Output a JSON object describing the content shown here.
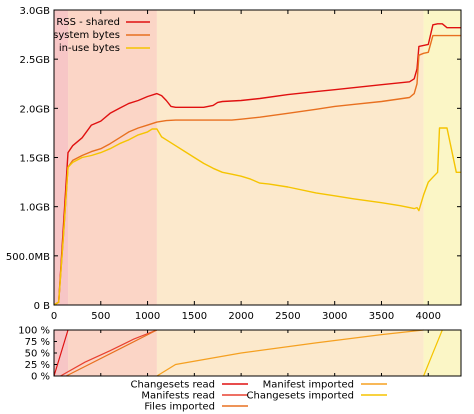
{
  "chart_data": [
    {
      "type": "line",
      "title": "",
      "xlabel": "",
      "ylabel": "",
      "xlim": [
        0,
        4350
      ],
      "ylim": [
        0,
        3000
      ],
      "x_ticks": [
        0,
        500,
        1000,
        1500,
        2000,
        2500,
        3000,
        3500,
        4000
      ],
      "x_tick_labels": [
        "0",
        "500",
        "1000",
        "1500",
        "2000",
        "2500",
        "3000",
        "3500",
        "4000"
      ],
      "y_ticks": [
        0,
        500,
        1000,
        1500,
        2000,
        2500,
        3000
      ],
      "y_tick_labels": [
        "0 B",
        "500.0MB",
        "1.0GB",
        "1.5GB",
        "2.0GB",
        "2.5GB",
        "3.0GB"
      ],
      "legend_position": "top-left",
      "background_phases": [
        {
          "x": [
            0,
            150
          ],
          "color": "#f7c6c6"
        },
        {
          "x": [
            150,
            1100
          ],
          "color": "#fbd5c6"
        },
        {
          "x": [
            1100,
            3950
          ],
          "color": "#fce9cc"
        },
        {
          "x": [
            3950,
            4350
          ],
          "color": "#fbf6c6"
        }
      ],
      "series": [
        {
          "name": "RSS - shared",
          "color": "#e01010",
          "x": [
            0,
            50,
            100,
            150,
            200,
            300,
            400,
            500,
            600,
            700,
            800,
            900,
            1000,
            1100,
            1150,
            1200,
            1250,
            1300,
            1400,
            1500,
            1600,
            1700,
            1750,
            1800,
            2000,
            2200,
            2500,
            2800,
            3000,
            3200,
            3500,
            3800,
            3850,
            3880,
            3900,
            3950,
            4000,
            4050,
            4100,
            4150,
            4200,
            4300,
            4350
          ],
          "values": [
            0,
            30,
            800,
            1550,
            1620,
            1700,
            1830,
            1870,
            1950,
            2000,
            2050,
            2080,
            2120,
            2150,
            2130,
            2080,
            2020,
            2010,
            2010,
            2010,
            2010,
            2030,
            2060,
            2070,
            2080,
            2100,
            2140,
            2170,
            2190,
            2210,
            2240,
            2270,
            2300,
            2400,
            2630,
            2640,
            2650,
            2850,
            2860,
            2860,
            2820,
            2820,
            2820
          ]
        },
        {
          "name": "system bytes",
          "color": "#e87020",
          "x": [
            0,
            50,
            100,
            150,
            200,
            300,
            400,
            500,
            600,
            700,
            800,
            900,
            1000,
            1100,
            1200,
            1300,
            1500,
            1700,
            1800,
            1900,
            2000,
            2200,
            2500,
            2800,
            3000,
            3200,
            3500,
            3800,
            3850,
            3880,
            3900,
            3950,
            4000,
            4050,
            4100,
            4150,
            4200,
            4350
          ],
          "values": [
            0,
            30,
            700,
            1400,
            1470,
            1520,
            1560,
            1590,
            1640,
            1700,
            1760,
            1800,
            1830,
            1860,
            1875,
            1880,
            1880,
            1880,
            1880,
            1880,
            1890,
            1910,
            1950,
            1990,
            2020,
            2040,
            2070,
            2110,
            2150,
            2250,
            2540,
            2560,
            2570,
            2740,
            2740,
            2740,
            2740,
            2740
          ]
        },
        {
          "name": "in-use bytes",
          "color": "#f5c400",
          "x": [
            0,
            50,
            100,
            150,
            200,
            300,
            400,
            500,
            600,
            700,
            800,
            900,
            1000,
            1050,
            1100,
            1150,
            1200,
            1300,
            1400,
            1500,
            1600,
            1700,
            1800,
            1900,
            2000,
            2100,
            2200,
            2300,
            2500,
            2800,
            3000,
            3200,
            3500,
            3700,
            3800,
            3850,
            3880,
            3900,
            3950,
            4000,
            4050,
            4100,
            4120,
            4150,
            4200,
            4300,
            4350
          ],
          "values": [
            0,
            30,
            700,
            1400,
            1450,
            1500,
            1520,
            1550,
            1590,
            1640,
            1680,
            1730,
            1760,
            1790,
            1790,
            1710,
            1680,
            1620,
            1560,
            1500,
            1440,
            1390,
            1350,
            1330,
            1310,
            1280,
            1240,
            1230,
            1200,
            1140,
            1110,
            1080,
            1040,
            1010,
            990,
            980,
            990,
            960,
            1120,
            1250,
            1300,
            1350,
            1800,
            1800,
            1800,
            1350,
            1350
          ]
        }
      ]
    },
    {
      "type": "line",
      "title": "",
      "xlim": [
        0,
        4350
      ],
      "ylim": [
        0,
        100
      ],
      "y_ticks": [
        0,
        25,
        50,
        75,
        100
      ],
      "y_tick_labels": [
        "0 %",
        "25 %",
        "50 %",
        "75 %",
        "100 %"
      ],
      "legend_position": "bottom",
      "series": [
        {
          "name": "Changesets read",
          "color": "#e01010",
          "x": [
            0,
            150
          ],
          "values": [
            0,
            100
          ]
        },
        {
          "name": "Manifests read",
          "color": "#e84030",
          "x": [
            70,
            330,
            600,
            850,
            1100
          ],
          "values": [
            0,
            30,
            55,
            80,
            100
          ]
        },
        {
          "name": "Files imported",
          "color": "#e87020",
          "x": [
            130,
            1100
          ],
          "values": [
            0,
            100
          ]
        },
        {
          "name": "Manifest imported",
          "color": "#f5a020",
          "x": [
            1100,
            1300,
            2000,
            2800,
            3500,
            3950
          ],
          "values": [
            0,
            25,
            50,
            72,
            90,
            100
          ]
        },
        {
          "name": "Changesets imported",
          "color": "#f5c400",
          "x": [
            3950,
            4050,
            4150
          ],
          "values": [
            0,
            50,
            100
          ]
        }
      ]
    }
  ]
}
